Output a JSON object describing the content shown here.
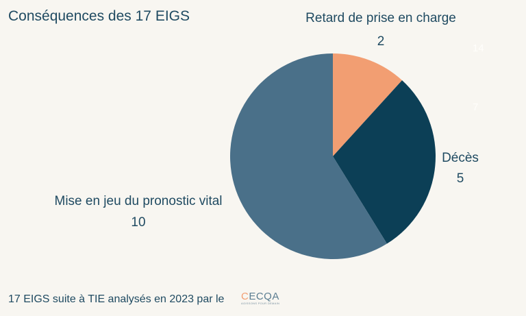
{
  "chart_data": {
    "type": "pie",
    "title": "Conséquences des 17 EIGS",
    "categories": [
      "Retard de prise en charge",
      "Décès",
      "Mise en jeu du pronostic vital"
    ],
    "values": [
      2,
      5,
      10
    ],
    "colors": [
      "#f29e72",
      "#0c3f56",
      "#4a7089"
    ],
    "start_angle": "top",
    "direction": "clockwise",
    "legend": "none",
    "faint_marks": [
      "14",
      "7"
    ]
  },
  "footer": {
    "text": "17 EIGS suite à TIE analysés en 2023 par le",
    "logo": "CECQA",
    "logo_tagline": "AGISSONS POUR DEMAIN"
  }
}
